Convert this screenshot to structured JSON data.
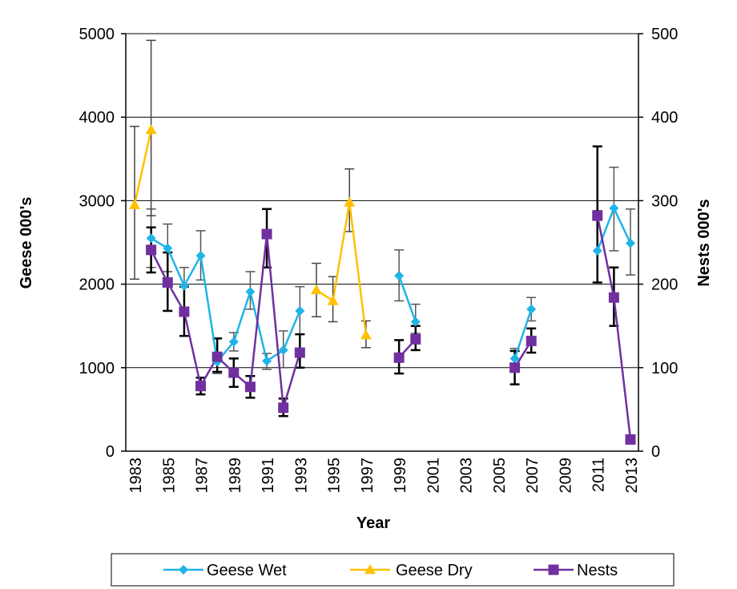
{
  "chart_data": {
    "type": "line",
    "xlabel": "Year",
    "ylabel": "Geese 000's",
    "y2label": "Nests 000's",
    "ylim": [
      0,
      5000
    ],
    "y2lim": [
      0,
      500
    ],
    "xlim": [
      1983,
      2013
    ],
    "yticks": [
      "0",
      "1000",
      "2000",
      "3000",
      "4000",
      "5000"
    ],
    "y2ticks": [
      "0",
      "100",
      "200",
      "300",
      "400",
      "500"
    ],
    "xticks": [
      "1983",
      "1985",
      "1987",
      "1989",
      "1991",
      "1993",
      "1995",
      "1997",
      "1999",
      "2001",
      "2003",
      "2005",
      "2007",
      "2009",
      "2011",
      "2013"
    ],
    "grid": "horizontal",
    "legend_position": "bottom",
    "legend": [
      "Geese Wet",
      "Geese Dry",
      "Nests"
    ],
    "colors": {
      "geese_wet": "#1fb4e6",
      "geese_dry": "#ffc000",
      "nests": "#7030a0"
    },
    "series": [
      {
        "name": "Geese Wet",
        "axis": "left",
        "marker": "diamond",
        "segments": [
          [
            [
              1984,
              2550,
              2200,
              2900
            ],
            [
              1985,
              2430,
              2150,
              2720
            ],
            [
              1986,
              1980,
              1720,
              2200
            ],
            [
              1987,
              2340,
              2050,
              2640
            ],
            [
              1988,
              1070,
              930,
              1350
            ],
            [
              1989,
              1310,
              1200,
              1420
            ],
            [
              1990,
              1910,
              1700,
              2150
            ],
            [
              1991,
              1080,
              980,
              1170
            ],
            [
              1992,
              1210,
              1000,
              1440
            ],
            [
              1993,
              1680,
              1400,
              1970
            ]
          ],
          [
            [
              1999,
              2100,
              1800,
              2410
            ],
            [
              2000,
              1550,
              1410,
              1760
            ]
          ],
          [
            [
              2006,
              1110,
              1000,
              1230
            ],
            [
              2007,
              1700,
              1560,
              1840
            ]
          ],
          [
            [
              2011,
              2400,
              2000,
              2880
            ],
            [
              2012,
              2910,
              2400,
              3400
            ],
            [
              2013,
              2490,
              2110,
              2900
            ]
          ]
        ]
      },
      {
        "name": "Geese Dry",
        "axis": "left",
        "marker": "triangle",
        "segments": [
          [
            [
              1983,
              2950,
              2060,
              3890
            ],
            [
              1984,
              3850,
              2820,
              4920
            ]
          ],
          [
            [
              1994,
              1930,
              1610,
              2250
            ],
            [
              1995,
              1800,
              1550,
              2090
            ],
            [
              1996,
              2980,
              2630,
              3380
            ],
            [
              1997,
              1390,
              1240,
              1560
            ]
          ]
        ]
      },
      {
        "name": "Nests",
        "axis": "right",
        "marker": "square",
        "segments": [
          [
            [
              1984,
              241,
              214,
              268
            ],
            [
              1985,
              202,
              168,
              238
            ],
            [
              1986,
              167,
              138,
              197
            ],
            [
              1987,
              78,
              68,
              88
            ],
            [
              1988,
              113,
              95,
              135
            ],
            [
              1989,
              94,
              77,
              111
            ],
            [
              1990,
              77,
              64,
              90
            ],
            [
              1991,
              260,
              220,
              290
            ],
            [
              1992,
              52,
              42,
              63
            ],
            [
              1993,
              118,
              100,
              140
            ]
          ],
          [
            [
              1999,
              112,
              93,
              133
            ],
            [
              2000,
              134,
              121,
              150
            ]
          ],
          [
            [
              2006,
              100,
              80,
              120
            ],
            [
              2007,
              132,
              118,
              147
            ]
          ],
          [
            [
              2011,
              282,
              202,
              365
            ],
            [
              2012,
              184,
              150,
              220
            ],
            [
              2013,
              14,
              14,
              14
            ]
          ]
        ]
      }
    ]
  }
}
